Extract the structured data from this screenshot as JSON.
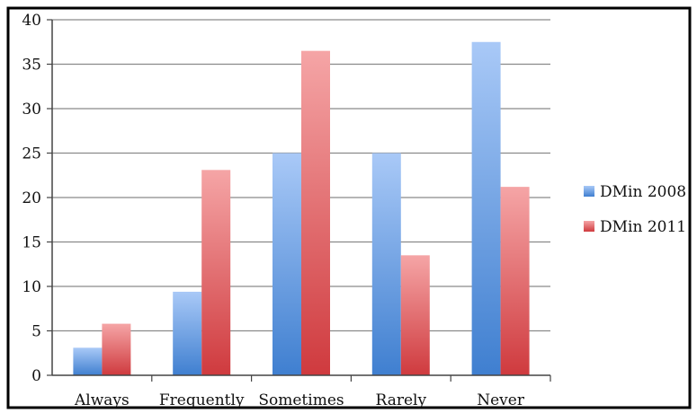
{
  "chart_data": {
    "type": "bar",
    "title": "",
    "xlabel": "",
    "ylabel": "",
    "categories": [
      "Always",
      "Frequently",
      "Sometimes",
      "Rarely",
      "Never"
    ],
    "series": [
      {
        "name": "DMin 2008",
        "values": [
          3.1,
          9.4,
          25.0,
          25.0,
          37.5
        ],
        "color": "#5b8fd6"
      },
      {
        "name": "DMin 2011",
        "values": [
          5.8,
          23.1,
          36.5,
          13.5,
          21.2
        ],
        "color": "#d9555a"
      }
    ],
    "ylim": [
      0,
      40
    ],
    "yticks": [
      "0",
      "5",
      "10",
      "15",
      "20",
      "25",
      "30",
      "35",
      "40"
    ],
    "grid": true,
    "legend": "right"
  }
}
